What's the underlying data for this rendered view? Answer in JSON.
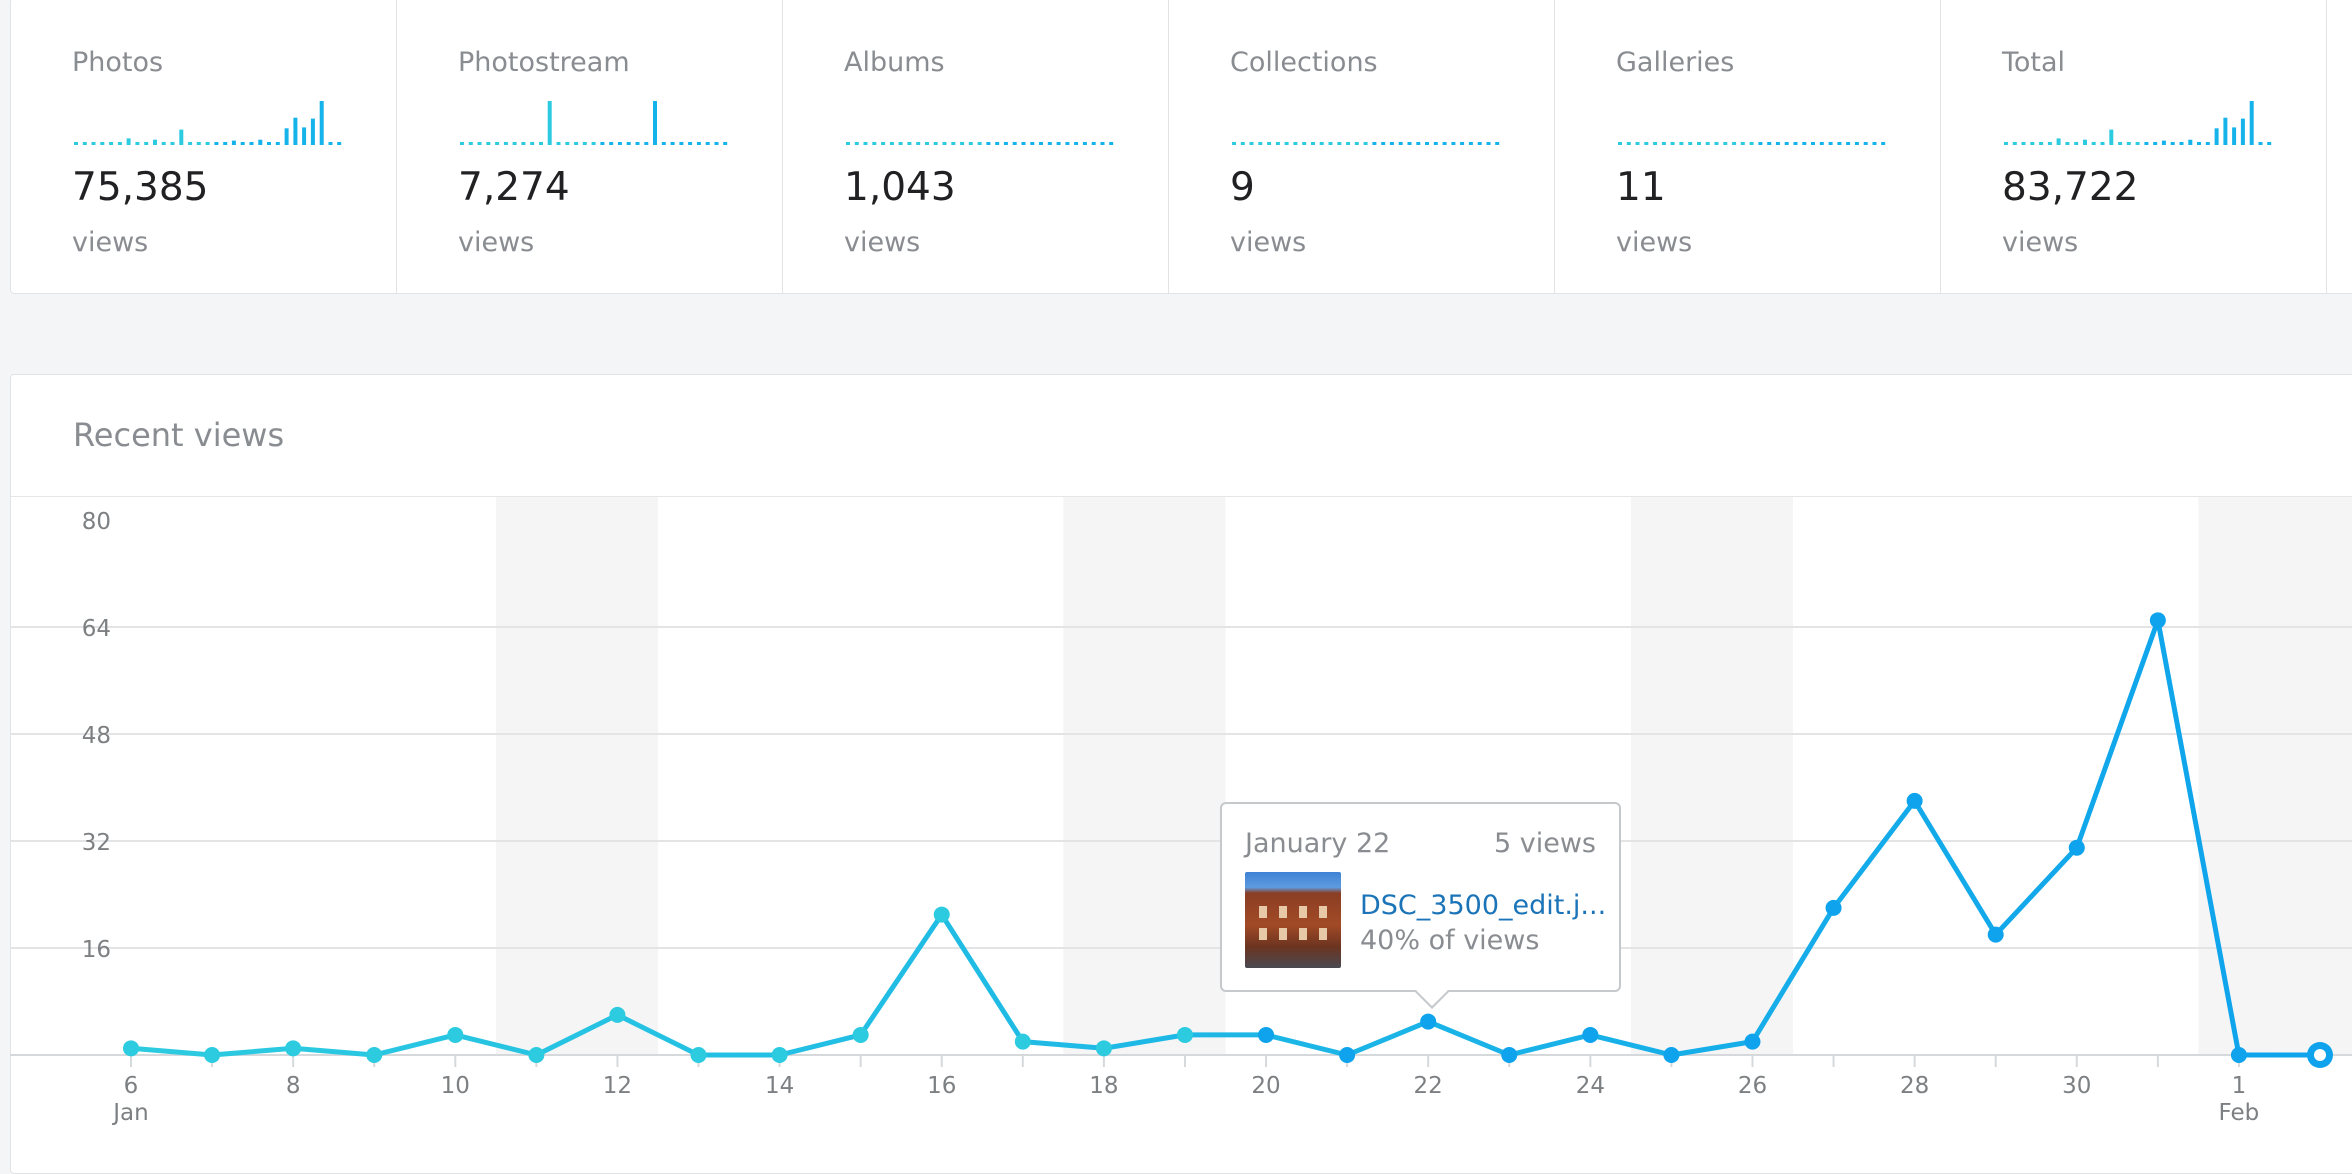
{
  "stats": [
    {
      "label": "Photos",
      "value": "75,385",
      "unit": "views",
      "spark": [
        0,
        0,
        0,
        0,
        0,
        0,
        0.15,
        0,
        0,
        0.12,
        0,
        0,
        0.35,
        0,
        0,
        0,
        0,
        0,
        0.1,
        0,
        0,
        0.12,
        0,
        0,
        0.38,
        0.62,
        0.4,
        0.6,
        1,
        0,
        0
      ]
    },
    {
      "label": "Photostream",
      "value": "7,274",
      "unit": "views",
      "spark": [
        0,
        0,
        0,
        0,
        0,
        0,
        0,
        0,
        0,
        0,
        1,
        0,
        0,
        0,
        0,
        0,
        0,
        0,
        0,
        0,
        0,
        0,
        1,
        0,
        0,
        0,
        0,
        0,
        0,
        0,
        0
      ]
    },
    {
      "label": "Albums",
      "value": "1,043",
      "unit": "views",
      "spark": [
        0,
        0,
        0,
        0,
        0,
        0,
        0,
        0,
        0,
        0,
        0,
        0,
        0,
        0,
        0,
        0,
        0,
        0,
        0,
        0,
        0,
        0,
        0,
        0,
        0,
        0,
        0,
        0,
        0,
        0,
        0
      ]
    },
    {
      "label": "Collections",
      "value": "9",
      "unit": "views",
      "spark": [
        0,
        0,
        0,
        0,
        0,
        0,
        0,
        0,
        0,
        0,
        0,
        0,
        0,
        0,
        0,
        0,
        0,
        0,
        0,
        0,
        0,
        0,
        0,
        0,
        0,
        0,
        0,
        0,
        0,
        0,
        0
      ]
    },
    {
      "label": "Galleries",
      "value": "11",
      "unit": "views",
      "spark": [
        0,
        0,
        0,
        0,
        0,
        0,
        0,
        0,
        0,
        0,
        0,
        0,
        0,
        0,
        0,
        0,
        0,
        0,
        0,
        0,
        0,
        0,
        0,
        0,
        0,
        0,
        0,
        0,
        0,
        0,
        0
      ]
    },
    {
      "label": "Total",
      "value": "83,722",
      "unit": "views",
      "spark": [
        0,
        0,
        0,
        0,
        0,
        0,
        0.15,
        0,
        0,
        0.12,
        0,
        0,
        0.35,
        0,
        0,
        0,
        0,
        0,
        0.1,
        0,
        0,
        0.12,
        0,
        0,
        0.38,
        0.62,
        0.4,
        0.6,
        1,
        0,
        0
      ]
    }
  ],
  "recent": {
    "title": "Recent views"
  },
  "chart_data": {
    "type": "line",
    "x": [
      "Jan 6",
      "Jan 7",
      "Jan 8",
      "Jan 9",
      "Jan 10",
      "Jan 11",
      "Jan 12",
      "Jan 13",
      "Jan 14",
      "Jan 15",
      "Jan 16",
      "Jan 17",
      "Jan 18",
      "Jan 19",
      "Jan 20",
      "Jan 21",
      "Jan 22",
      "Jan 23",
      "Jan 24",
      "Jan 25",
      "Jan 26",
      "Jan 27",
      "Jan 28",
      "Jan 29",
      "Jan 30",
      "Jan 31",
      "Feb 1",
      "Feb 2"
    ],
    "values": [
      1,
      0,
      1,
      0,
      3,
      0,
      6,
      0,
      0,
      3,
      21,
      2,
      1,
      3,
      3,
      0,
      5,
      0,
      3,
      0,
      2,
      22,
      38,
      18,
      31,
      65,
      0,
      0
    ],
    "ylim": [
      0,
      80
    ],
    "yticks": [
      16,
      32,
      48,
      64,
      80
    ],
    "xticks": [
      {
        "label": "6",
        "sub": "Jan",
        "index": 0
      },
      {
        "label": "8",
        "index": 2
      },
      {
        "label": "10",
        "index": 4
      },
      {
        "label": "12",
        "index": 6
      },
      {
        "label": "14",
        "index": 8
      },
      {
        "label": "16",
        "index": 10
      },
      {
        "label": "18",
        "index": 12
      },
      {
        "label": "20",
        "index": 14
      },
      {
        "label": "22",
        "index": 16
      },
      {
        "label": "24",
        "index": 18
      },
      {
        "label": "26",
        "index": 20
      },
      {
        "label": "28",
        "index": 22
      },
      {
        "label": "30",
        "index": 24
      },
      {
        "label": "1",
        "sub": "Feb",
        "index": 26
      }
    ],
    "weekend_bands": [
      [
        4.5,
        6.5
      ],
      [
        11.5,
        13.5
      ],
      [
        18.5,
        20.5
      ],
      [
        25.5,
        27.5
      ]
    ],
    "grid": true,
    "colors": {
      "start": "#2ccbe0",
      "end": "#0ea3ec"
    }
  },
  "tooltip": {
    "date": "January 22",
    "count": "5 views",
    "filename": "DSC_3500_edit.j...",
    "share": "40% of views"
  }
}
